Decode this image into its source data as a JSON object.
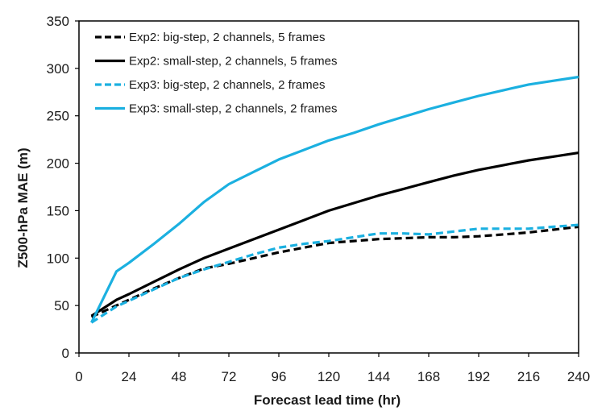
{
  "chart_data": {
    "type": "line",
    "title": "",
    "xlabel": "Forecast lead time (hr)",
    "ylabel": "Z500-hPa MAE (m)",
    "xlim": [
      0,
      240
    ],
    "ylim": [
      0,
      350
    ],
    "xticks": [
      0,
      24,
      48,
      72,
      96,
      120,
      144,
      168,
      192,
      216,
      240
    ],
    "yticks": [
      0,
      50,
      100,
      150,
      200,
      250,
      300,
      350
    ],
    "grid": false,
    "legend_position": "top-left",
    "series": [
      {
        "name": "Exp2: big-step, 2 channels, 5 frames",
        "color": "#000000",
        "dash": "dashed",
        "x": [
          6,
          18,
          24,
          36,
          48,
          60,
          72,
          84,
          96,
          108,
          120,
          132,
          144,
          156,
          168,
          180,
          192,
          204,
          216,
          228,
          240
        ],
        "y": [
          38,
          50,
          56,
          68,
          79,
          89,
          94,
          100,
          106,
          111,
          116,
          118,
          120,
          121,
          122,
          122,
          123,
          125,
          127,
          130,
          133
        ]
      },
      {
        "name": "Exp2: small-step, 2 channels, 5 frames",
        "color": "#000000",
        "dash": "solid",
        "x": [
          6,
          18,
          24,
          36,
          48,
          60,
          72,
          84,
          96,
          108,
          120,
          132,
          144,
          156,
          168,
          180,
          192,
          204,
          216,
          228,
          240
        ],
        "y": [
          39,
          56,
          62,
          75,
          88,
          100,
          110,
          120,
          130,
          140,
          150,
          158,
          166,
          173,
          180,
          187,
          193,
          198,
          203,
          207,
          211
        ]
      },
      {
        "name": "Exp3: big-step, 2 channels, 2 frames",
        "color": "#1bb0e0",
        "dash": "dashed",
        "x": [
          6,
          18,
          24,
          36,
          48,
          60,
          72,
          84,
          96,
          108,
          120,
          132,
          144,
          156,
          168,
          180,
          192,
          204,
          216,
          228,
          240
        ],
        "y": [
          32,
          49,
          55,
          67,
          79,
          88,
          96,
          104,
          111,
          115,
          118,
          122,
          126,
          126,
          125,
          128,
          131,
          131,
          131,
          133,
          135
        ]
      },
      {
        "name": "Exp3: small-step, 2 channels, 2 frames",
        "color": "#1bb0e0",
        "dash": "solid",
        "x": [
          6,
          18,
          24,
          36,
          48,
          60,
          72,
          84,
          96,
          108,
          120,
          132,
          144,
          156,
          168,
          180,
          192,
          204,
          216,
          228,
          240
        ],
        "y": [
          32,
          86,
          95,
          115,
          136,
          159,
          178,
          191,
          204,
          214,
          224,
          232,
          241,
          249,
          257,
          264,
          271,
          277,
          283,
          287,
          291
        ]
      }
    ]
  }
}
